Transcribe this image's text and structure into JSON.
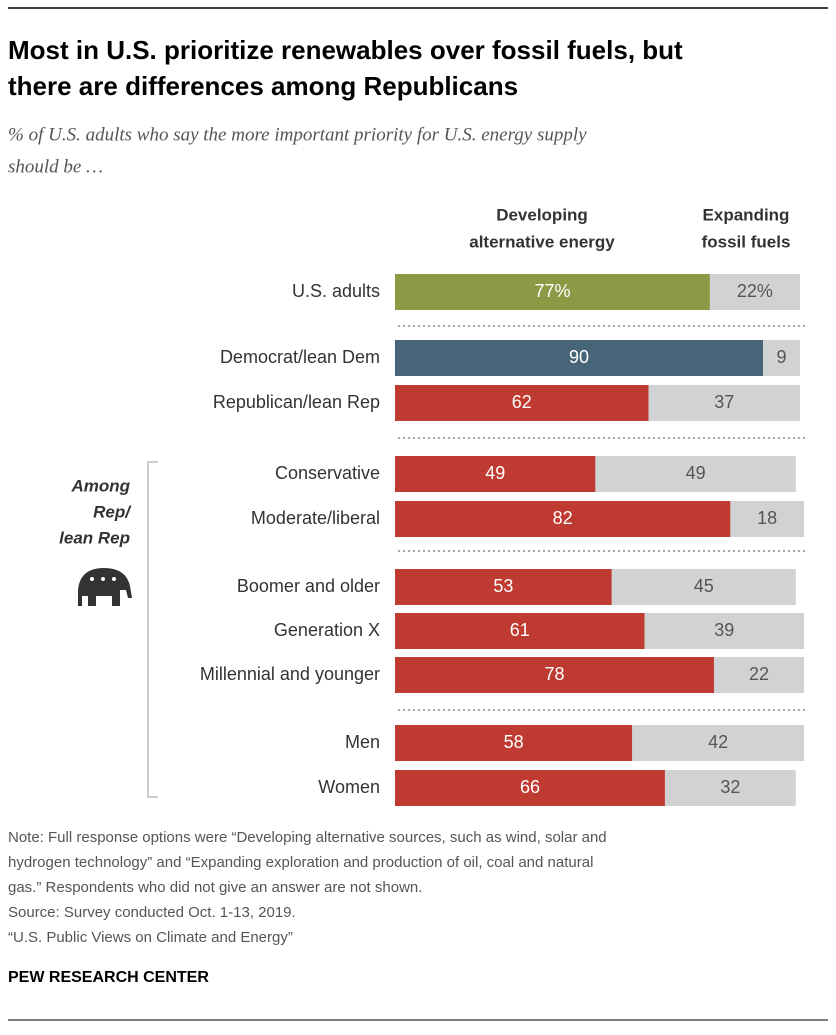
{
  "chart_data": {
    "type": "stacked-bar-horizontal",
    "title": [
      "Most in U.S. prioritize renewables over fossil fuels, but",
      "there are differences among Republicans"
    ],
    "subtitle": [
      "% of U.S. adults who say the more important priority for U.S. energy supply",
      "should be …"
    ],
    "categories": [
      "U.S. adults",
      "Democrat/lean Dem",
      "Republican/lean Rep",
      "Conservative",
      "Moderate/liberal",
      "Boomer and older",
      "Generation X",
      "Millennial and younger",
      "Men",
      "Women"
    ],
    "series": [
      {
        "name": [
          "Developing",
          "alternative energy"
        ],
        "colors": [
          "#8c9a46",
          "#476479",
          "#bf3b32",
          "#bf3b32",
          "#bf3b32",
          "#bf3b32",
          "#bf3b32",
          "#bf3b32",
          "#bf3b32",
          "#bf3b32"
        ],
        "values": [
          77,
          90,
          62,
          49,
          82,
          53,
          61,
          78,
          58,
          66
        ],
        "value_labels": [
          "77%",
          "90",
          "62",
          "49",
          "82",
          "53",
          "61",
          "78",
          "58",
          "66"
        ]
      },
      {
        "name": [
          "Expanding",
          "fossil fuels"
        ],
        "color": "#d1d2d3",
        "values": [
          22,
          9,
          37,
          49,
          18,
          45,
          39,
          22,
          42,
          32
        ],
        "value_labels": [
          "22%",
          "9",
          "37",
          "49",
          "18",
          "45",
          "39",
          "22",
          "42",
          "32"
        ]
      }
    ],
    "group_annotation": [
      "Among",
      "Rep/",
      "lean Rep"
    ],
    "note": [
      "Note: Full response options were “Developing alternative sources, such as wind, solar and",
      "hydrogen technology” and “Expanding exploration and production of oil, coal and natural",
      "gas.” Respondents who did not give an answer are not shown."
    ],
    "source": "Source: Survey conducted Oct. 1-13, 2019.",
    "report": "“U.S. Public Views on Climate and Energy”",
    "brand": "PEW RESEARCH CENTER"
  }
}
